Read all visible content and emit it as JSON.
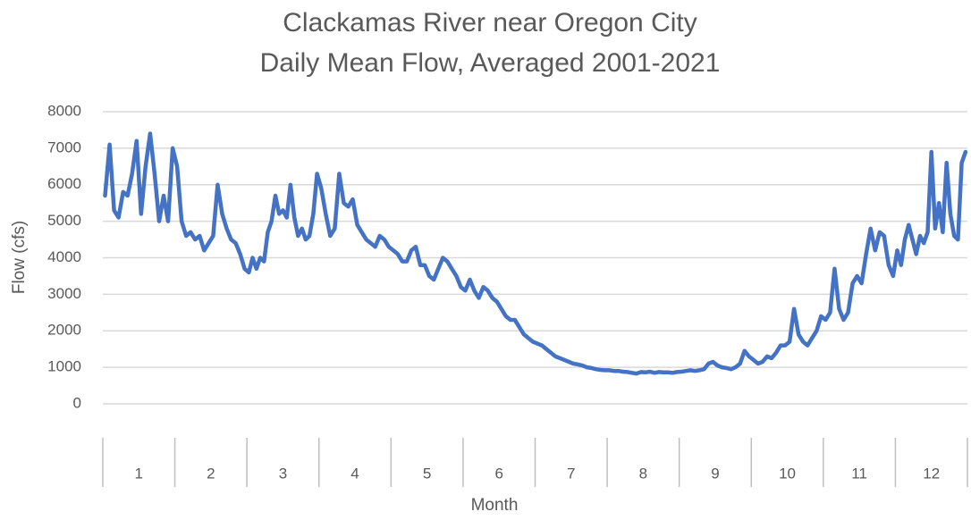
{
  "chart_data": {
    "type": "line",
    "title": "Clackamas River near Oregon City",
    "subtitle": "Daily Mean Flow, Averaged 2001-2021",
    "x_label": "Month",
    "y_label": "Flow (cfs)",
    "color": "#4472c4",
    "grid": true,
    "ylim": [
      0,
      8000
    ],
    "yticks": [
      0,
      1000,
      2000,
      3000,
      4000,
      5000,
      6000,
      7000,
      8000
    ],
    "categories": [
      "1",
      "2",
      "3",
      "4",
      "5",
      "6",
      "7",
      "8",
      "9",
      "10",
      "11",
      "12"
    ],
    "values": [
      [
        5700,
        7100,
        5300,
        5100,
        5800,
        5700,
        6300,
        7200,
        5200,
        6500,
        7400,
        6300,
        5000,
        5700,
        5000,
        7000
      ],
      [
        6500,
        5000,
        4600,
        4700,
        4500,
        4600,
        4200,
        4400,
        4600,
        6000,
        5200,
        4800,
        4500,
        4400,
        4100,
        3700
      ],
      [
        3600,
        4000,
        3700,
        4000,
        3900,
        4700,
        5000,
        5700,
        5200,
        5300,
        5100,
        6000,
        5100,
        4600,
        4800,
        4500,
        4600,
        5200,
        6300
      ],
      [
        5900,
        5200,
        4600,
        4800,
        6300,
        5500,
        5400,
        5600,
        4900,
        4700,
        4500,
        4400,
        4300,
        4600,
        4500,
        4300
      ],
      [
        4200,
        4100,
        3900,
        3900,
        4200,
        4300,
        3800,
        3800,
        3500,
        3400,
        3700,
        4000,
        3900,
        3700,
        3500,
        3200
      ],
      [
        3100,
        3400,
        3100,
        2900,
        3200,
        3100,
        2900,
        2800,
        2600,
        2400,
        2300,
        2300,
        2100,
        1900,
        1800,
        1700
      ],
      [
        1650,
        1600,
        1500,
        1400,
        1300,
        1250,
        1200,
        1150,
        1100,
        1080,
        1050,
        1000,
        980,
        950,
        930,
        920
      ],
      [
        920,
        900,
        900,
        880,
        870,
        850,
        830,
        870,
        860,
        880,
        850,
        870,
        860,
        860,
        850,
        870
      ],
      [
        880,
        900,
        920,
        900,
        920,
        950,
        1100,
        1150,
        1050,
        1000,
        980,
        950,
        1000,
        1100,
        1450,
        1300
      ],
      [
        1200,
        1100,
        1150,
        1300,
        1250,
        1400,
        1600,
        1600,
        1700,
        2600,
        1900,
        1700,
        1600,
        1800,
        2000,
        2400
      ],
      [
        2300,
        2500,
        3700,
        2600,
        2300,
        2500,
        3300,
        3500,
        3300,
        4100,
        4800,
        4200,
        4700,
        4600,
        3800,
        3500
      ],
      [
        4200,
        3800,
        4500,
        4900,
        4500,
        4100,
        4600,
        4400,
        4700,
        6900,
        4800,
        5500,
        4700,
        6600,
        5200,
        4600,
        4500,
        6600,
        6900
      ]
    ]
  }
}
